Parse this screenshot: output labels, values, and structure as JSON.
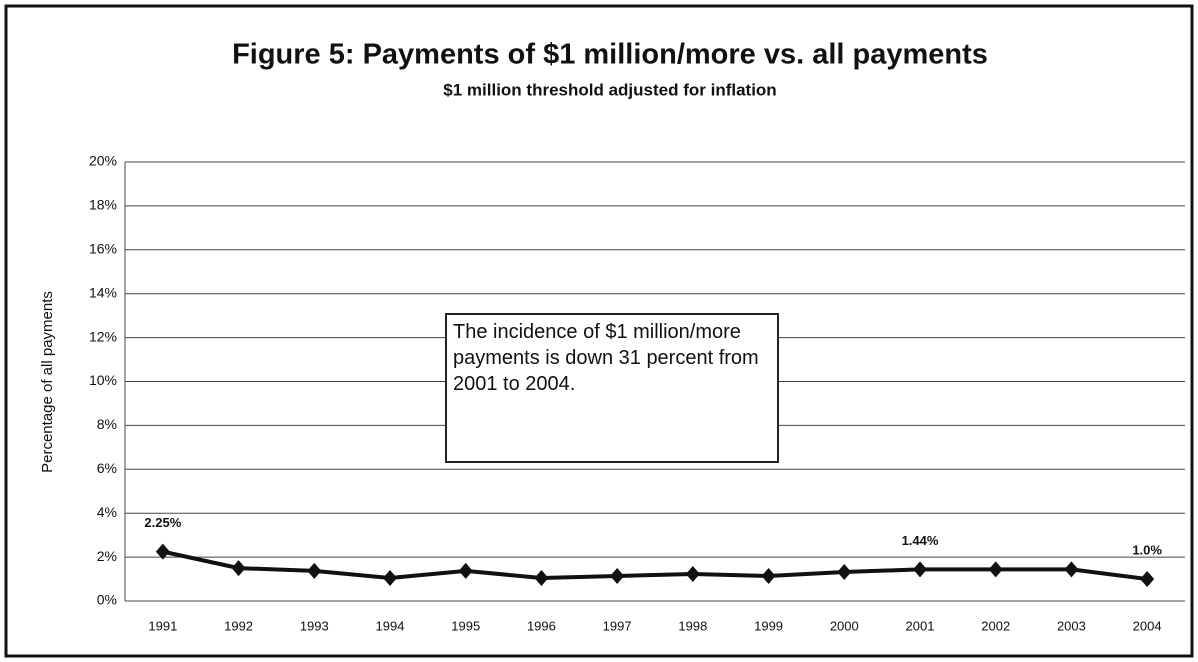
{
  "chart_data": {
    "type": "line",
    "title": "Figure 5: Payments of $1 million/more vs. all payments",
    "subtitle": "$1 million threshold adjusted for inflation",
    "y_label": "Percentage of all payments",
    "annotation": "The incidence of $1 million/more payments is down 31 percent from 2001 to 2004.",
    "categories": [
      "1991",
      "1992",
      "1993",
      "1994",
      "1995",
      "1996",
      "1997",
      "1998",
      "1999",
      "2000",
      "2001",
      "2002",
      "2003",
      "2004"
    ],
    "values": [
      2.25,
      1.5,
      1.37,
      1.05,
      1.37,
      1.05,
      1.14,
      1.23,
      1.14,
      1.32,
      1.44,
      1.44,
      1.44,
      1.0
    ],
    "value_labels": [
      "2.25%",
      null,
      null,
      null,
      null,
      null,
      null,
      null,
      null,
      null,
      "1.44%",
      null,
      null,
      "1.0%"
    ],
    "color": "#111111",
    "ylim": [
      0,
      20
    ],
    "yticks": [
      {
        "value": 0,
        "label": "0%"
      },
      {
        "value": 2,
        "label": "2%"
      },
      {
        "value": 4,
        "label": "4%"
      },
      {
        "value": 6,
        "label": "6%"
      },
      {
        "value": 8,
        "label": "8%"
      },
      {
        "value": 10,
        "label": "10%"
      },
      {
        "value": 12,
        "label": "12%"
      },
      {
        "value": 14,
        "label": "14%"
      },
      {
        "value": 16,
        "label": "16%"
      },
      {
        "value": 18,
        "label": "18%"
      },
      {
        "value": 20,
        "label": "20%"
      }
    ],
    "grid": true
  }
}
